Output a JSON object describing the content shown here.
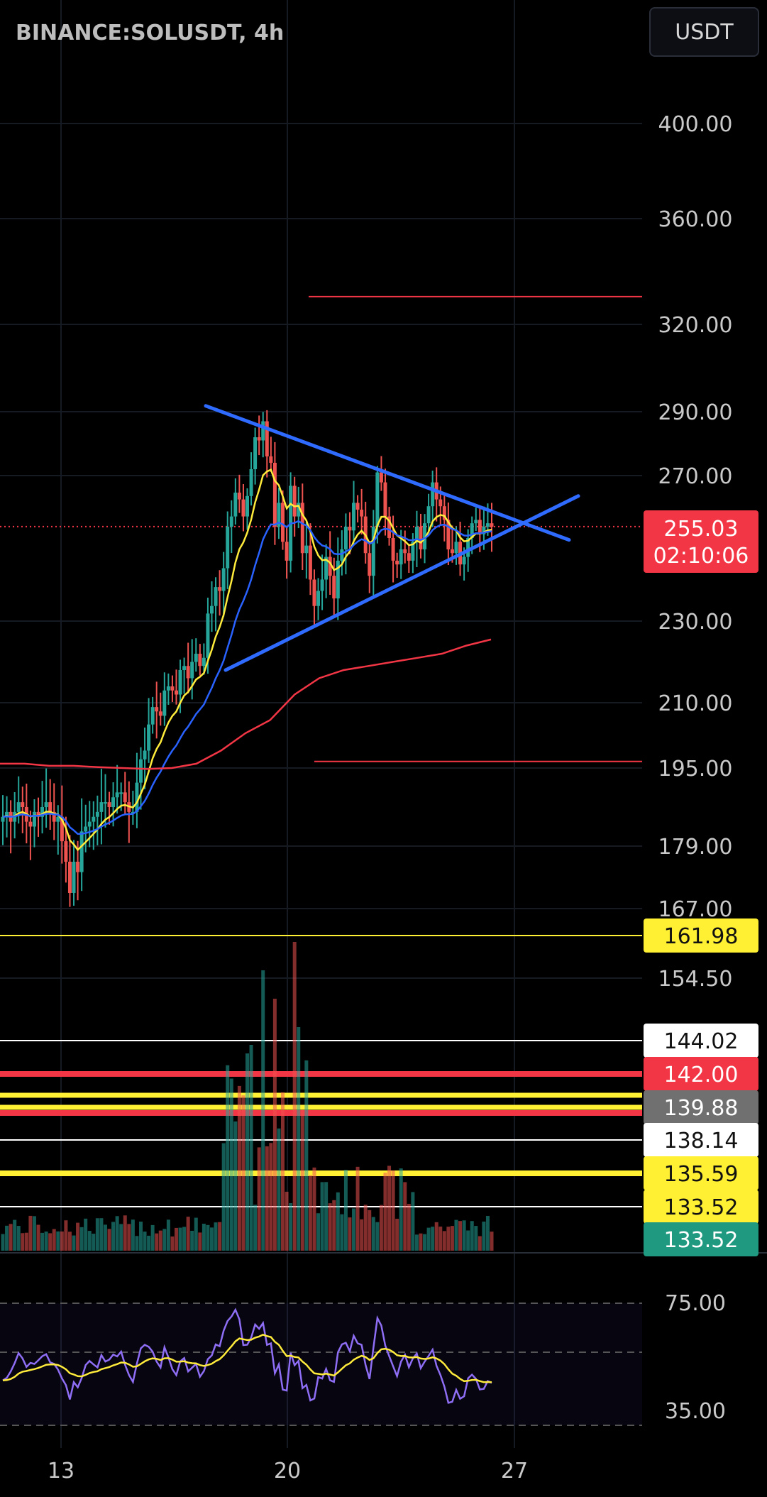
{
  "header": {
    "symbol": "BINANCE:SOLUSDT, 4h",
    "currency": "USDT"
  },
  "price_axis": {
    "labels": [
      "400.00",
      "360.00",
      "320.00",
      "290.00",
      "270.00",
      "230.00",
      "210.00",
      "195.00",
      "179.00",
      "167.00",
      "154.50"
    ]
  },
  "rsi_axis": {
    "labels": [
      "75.00",
      "35.00"
    ]
  },
  "time_axis": {
    "labels": [
      "13",
      "20",
      "27"
    ]
  },
  "last_price": {
    "value": "255.03",
    "countdown": "02:10:06",
    "color": "#f23645"
  },
  "price_tags": [
    {
      "value": "161.98",
      "bg": "#fff033",
      "fg": "#111111"
    },
    {
      "value": "144.02",
      "bg": "#ffffff",
      "fg": "#111111"
    },
    {
      "value": "142.00",
      "bg": "#f23645",
      "fg": "#ffffff"
    },
    {
      "value": "139.88",
      "bg": "#707070",
      "fg": "#ffffff"
    },
    {
      "value": "138.14",
      "bg": "#ffffff",
      "fg": "#111111"
    },
    {
      "value": "135.59",
      "bg": "#fff033",
      "fg": "#111111"
    },
    {
      "value": "133.52",
      "bg": "#fff033",
      "fg": "#111111"
    },
    {
      "value": "133.52",
      "bg": "#1f9a80",
      "fg": "#ffffff"
    }
  ],
  "colors": {
    "up": "#26a69a",
    "down": "#ef5350",
    "ema_fast": "#ffeb3b",
    "ema_mid": "#2962ff",
    "ema_slow": "#f23645",
    "trendline": "#2f6bff",
    "rsi": "#8e6ef5",
    "rsi_ma": "#ffeb3b"
  },
  "chart_data": {
    "type": "candlestick",
    "symbol": "BINANCE:SOLUSDT",
    "interval": "4h",
    "y_scale": "log",
    "ylim": [
      150,
      420
    ],
    "last_price": 255.03,
    "horizontal_levels": [
      330.5,
      196.5,
      161.98,
      144.02,
      142.0,
      139.88,
      138.14,
      135.59,
      133.52
    ],
    "pattern": "symmetrical triangle",
    "closes": [
      185,
      186,
      184,
      186,
      188,
      187,
      184,
      183,
      186,
      185,
      187,
      188,
      186,
      184,
      185,
      180,
      176,
      170,
      176,
      174,
      182,
      183,
      184,
      185,
      186,
      188,
      188,
      187,
      189,
      190,
      190,
      188,
      186,
      186,
      192,
      197,
      199,
      205,
      209,
      208,
      207,
      213,
      214,
      213,
      212,
      218,
      219,
      216,
      220,
      222,
      219,
      221,
      232,
      234,
      239,
      238,
      244,
      255,
      258,
      265,
      263,
      258,
      264,
      272,
      282,
      281,
      287,
      276,
      274,
      255,
      262,
      251,
      246,
      267,
      258,
      262,
      248,
      250,
      241,
      234,
      238,
      241,
      247,
      242,
      236,
      246,
      249,
      255,
      254,
      262,
      260,
      258,
      248,
      242,
      255,
      271,
      268,
      258,
      252,
      246,
      245,
      249,
      248,
      246,
      251,
      255,
      249,
      256,
      261,
      268,
      263,
      261,
      257,
      249,
      248,
      251,
      245,
      247,
      252,
      256,
      257,
      253,
      255,
      256,
      255
    ]
  },
  "rsi_data": {
    "upper": 70,
    "middle": 50,
    "lower": 30
  }
}
